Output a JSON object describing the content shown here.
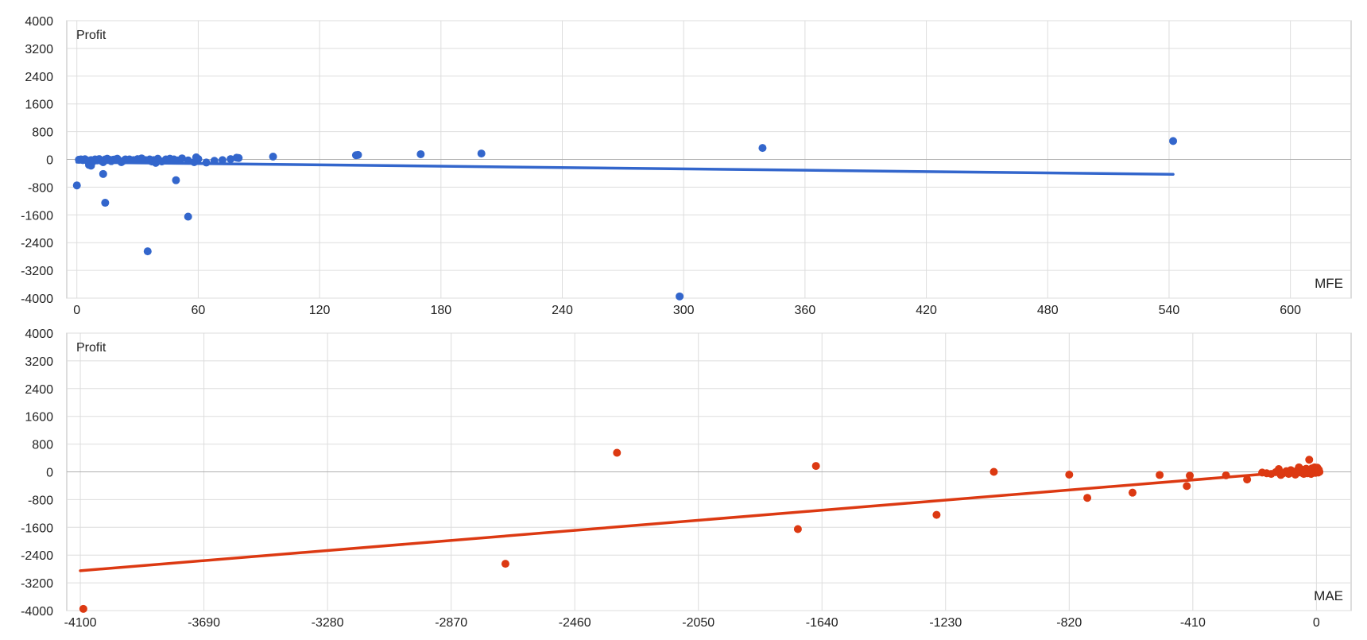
{
  "colors": {
    "mfe": "#3366cc",
    "mae": "#dc3912",
    "grid": "#dddddd",
    "zero_line": "#b0b0b0",
    "frame": "#bbbbbb",
    "text": "#222222"
  },
  "chart_data": [
    {
      "type": "scatter",
      "ylabel": "Profit",
      "xlabel": "MFE",
      "xlim": [
        -5,
        630
      ],
      "ylim": [
        -4000,
        4000
      ],
      "xticks": [
        0,
        60,
        120,
        180,
        240,
        300,
        360,
        420,
        480,
        540,
        600
      ],
      "yticks": [
        4000,
        3200,
        2400,
        1600,
        800,
        0,
        -800,
        -1600,
        -2400,
        -3200,
        -4000
      ],
      "grid": true,
      "trendline": {
        "x": [
          0,
          542
        ],
        "y": [
          -80,
          -430
        ]
      },
      "points": [
        [
          0,
          -750
        ],
        [
          1,
          -10
        ],
        [
          2,
          0
        ],
        [
          3,
          -20
        ],
        [
          4,
          5
        ],
        [
          5,
          -30
        ],
        [
          6,
          -120
        ],
        [
          6,
          -160
        ],
        [
          7,
          -180
        ],
        [
          7,
          -20
        ],
        [
          8,
          -60
        ],
        [
          9,
          0
        ],
        [
          10,
          -30
        ],
        [
          11,
          10
        ],
        [
          12,
          -40
        ],
        [
          13,
          -80
        ],
        [
          14,
          0
        ],
        [
          15,
          20
        ],
        [
          16,
          -10
        ],
        [
          17,
          -50
        ],
        [
          18,
          -10
        ],
        [
          19,
          0
        ],
        [
          20,
          20
        ],
        [
          22,
          -80
        ],
        [
          23,
          -40
        ],
        [
          24,
          0
        ],
        [
          26,
          0
        ],
        [
          28,
          -20
        ],
        [
          30,
          10
        ],
        [
          32,
          30
        ],
        [
          34,
          -20
        ],
        [
          36,
          0
        ],
        [
          38,
          -20
        ],
        [
          40,
          20
        ],
        [
          42,
          -60
        ],
        [
          44,
          0
        ],
        [
          46,
          20
        ],
        [
          48,
          0
        ],
        [
          50,
          -30
        ],
        [
          52,
          30
        ],
        [
          55,
          -30
        ],
        [
          60,
          10
        ],
        [
          64,
          -90
        ],
        [
          68,
          -40
        ],
        [
          72,
          -20
        ],
        [
          76,
          10
        ],
        [
          79,
          50
        ],
        [
          80,
          40
        ],
        [
          97,
          80
        ],
        [
          138,
          120
        ],
        [
          139,
          130
        ],
        [
          170,
          150
        ],
        [
          200,
          170
        ],
        [
          14,
          -1250
        ],
        [
          13,
          -420
        ],
        [
          35,
          -2650
        ],
        [
          55,
          -1650
        ],
        [
          49,
          -600
        ],
        [
          298,
          -3950
        ],
        [
          58,
          -80
        ],
        [
          59,
          60
        ],
        [
          60,
          10
        ],
        [
          339,
          330
        ],
        [
          542,
          530
        ],
        [
          37,
          -60
        ],
        [
          39,
          -100
        ]
      ]
    },
    {
      "type": "scatter",
      "ylabel": "Profit",
      "xlabel": "MAE",
      "xlim": [
        -4145,
        115
      ],
      "ylim": [
        -4000,
        4000
      ],
      "xticks": [
        -4100,
        -3690,
        -3280,
        -2870,
        -2460,
        -2050,
        -1640,
        -1230,
        -820,
        -410,
        0
      ],
      "yticks": [
        4000,
        3200,
        2400,
        1600,
        800,
        0,
        -800,
        -1600,
        -2400,
        -3200,
        -4000
      ],
      "grid": true,
      "trendline": {
        "x": [
          -4100,
          -110
        ],
        "y": [
          -2850,
          -20
        ]
      },
      "points": [
        [
          -4090,
          -3950
        ],
        [
          -2690,
          -2650
        ],
        [
          -2320,
          550
        ],
        [
          -1720,
          -1650
        ],
        [
          -1660,
          170
        ],
        [
          -1260,
          -1240
        ],
        [
          -1070,
          0
        ],
        [
          -820,
          -80
        ],
        [
          -760,
          -750
        ],
        [
          -610,
          -600
        ],
        [
          -520,
          -90
        ],
        [
          -430,
          -410
        ],
        [
          -420,
          -110
        ],
        [
          -300,
          -100
        ],
        [
          -230,
          -220
        ],
        [
          -180,
          -20
        ],
        [
          -165,
          -40
        ],
        [
          -150,
          -60
        ],
        [
          -135,
          -10
        ],
        [
          -125,
          80
        ],
        [
          -118,
          -90
        ],
        [
          -110,
          -40
        ],
        [
          -100,
          20
        ],
        [
          -92,
          -60
        ],
        [
          -85,
          50
        ],
        [
          -78,
          0
        ],
        [
          -70,
          -80
        ],
        [
          -64,
          40
        ],
        [
          -58,
          130
        ],
        [
          -52,
          -20
        ],
        [
          -47,
          60
        ],
        [
          -42,
          -60
        ],
        [
          -38,
          10
        ],
        [
          -34,
          90
        ],
        [
          -30,
          -40
        ],
        [
          -27,
          60
        ],
        [
          -24,
          350
        ],
        [
          -21,
          20
        ],
        [
          -18,
          -60
        ],
        [
          -15,
          100
        ],
        [
          -12,
          -20
        ],
        [
          -10,
          50
        ],
        [
          -8,
          0
        ],
        [
          -6,
          130
        ],
        [
          -4,
          -30
        ],
        [
          -2,
          70
        ],
        [
          0,
          20
        ],
        [
          2,
          -10
        ],
        [
          3,
          120
        ],
        [
          4,
          30
        ],
        [
          6,
          -20
        ],
        [
          8,
          60
        ],
        [
          10,
          0
        ]
      ]
    }
  ]
}
